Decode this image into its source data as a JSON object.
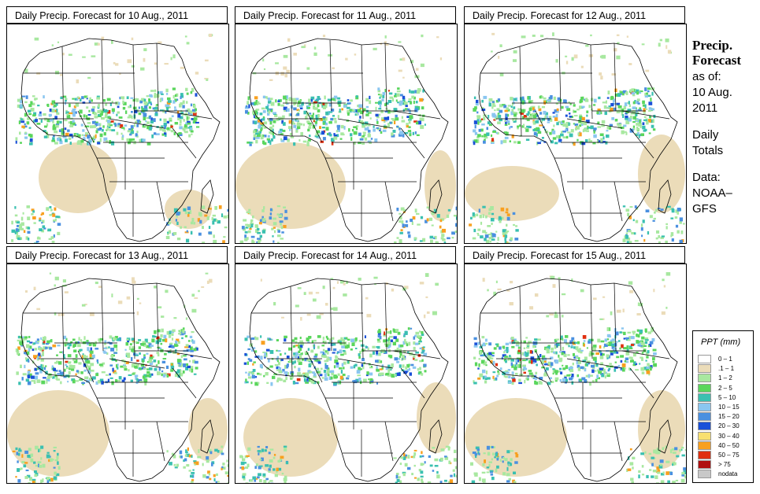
{
  "panels": [
    {
      "title": "Daily Precip. Forecast for  10 Aug., 2011"
    },
    {
      "title": "Daily Precip. Forecast for  11 Aug., 2011"
    },
    {
      "title": "Daily Precip. Forecast for  12 Aug., 2011"
    },
    {
      "title": "Daily Precip. Forecast for  13 Aug., 2011"
    },
    {
      "title": "Daily Precip. Forecast for  14 Aug., 2011"
    },
    {
      "title": "Daily Precip. Forecast for  15 Aug., 2011"
    }
  ],
  "side": {
    "title_line1": "Precip.",
    "title_line2": "Forecast",
    "asof_label": "as of:",
    "date_line1": "10 Aug.",
    "date_line2": "2011",
    "daily_line1": "Daily",
    "daily_line2": "Totals",
    "data_line1": "Data:",
    "data_line2": "NOAA–",
    "data_line3": "GFS"
  },
  "legend": {
    "title": "PPT (mm)",
    "items": [
      {
        "label": "0 – 1",
        "color": "#ffffff"
      },
      {
        "label": ".1 – 1",
        "color": "#ebdcb9"
      },
      {
        "label": "1 – 2",
        "color": "#a8e8a0"
      },
      {
        "label": "2 – 5",
        "color": "#5ad65c"
      },
      {
        "label": "5 – 10",
        "color": "#3ac0b0"
      },
      {
        "label": "10 – 15",
        "color": "#8ac6f0"
      },
      {
        "label": "15 – 20",
        "color": "#4a90e0"
      },
      {
        "label": "20 – 30",
        "color": "#1a50d8"
      },
      {
        "label": "30 – 40",
        "color": "#f8e070"
      },
      {
        "label": "40 – 50",
        "color": "#f8a020"
      },
      {
        "label": "50 – 75",
        "color": "#e03010"
      },
      {
        "label": "> 75",
        "color": "#b01010"
      },
      {
        "label": "nodata",
        "color": "#c8c8c8"
      }
    ]
  }
}
